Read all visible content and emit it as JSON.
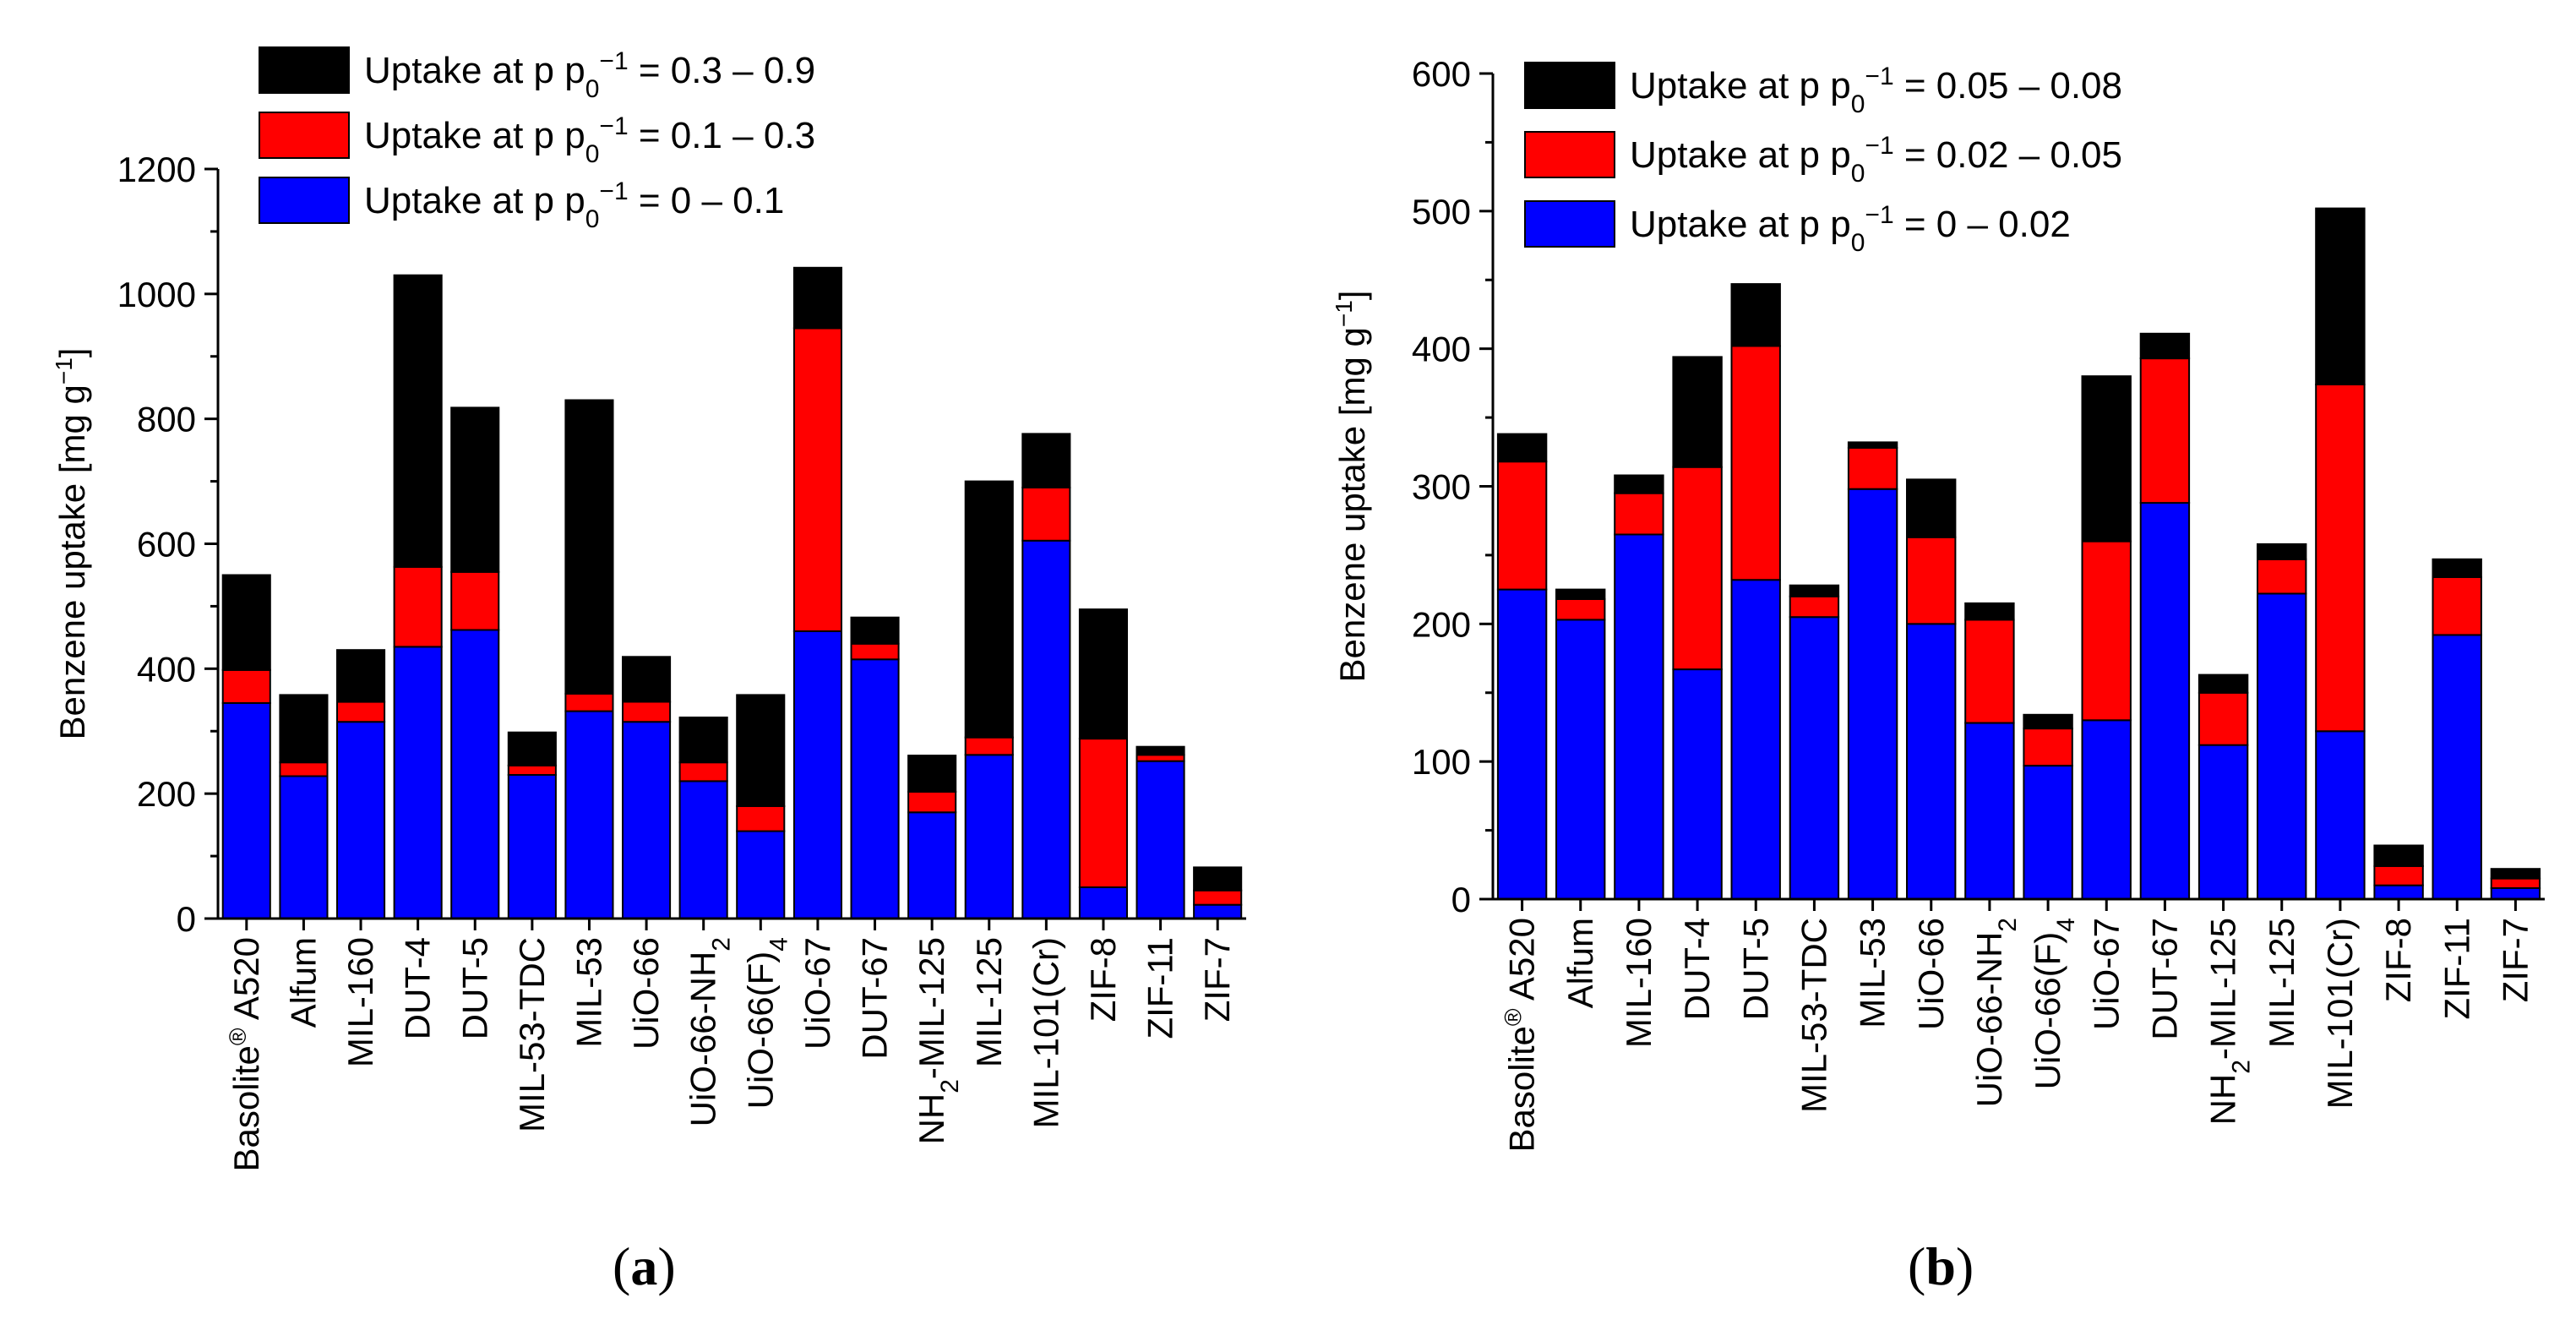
{
  "panel_labels": {
    "a": "a",
    "b": "b"
  },
  "chart_data": [
    {
      "type": "bar",
      "stacked": true,
      "id": "a",
      "ylabel": "Benzene uptake [mg g^-1]",
      "ylabel_parts": {
        "base": "Benzene uptake [mg g",
        "sup": "−1",
        "close": "]"
      },
      "ylim": [
        0,
        1200
      ],
      "yticks": [
        "0",
        "200",
        "400",
        "600",
        "800",
        "1000",
        "1200"
      ],
      "categories": [
        "Basolite® A520",
        "Alfum",
        "MIL-160",
        "DUT-4",
        "DUT-5",
        "MIL-53-TDC",
        "MIL-53",
        "UiO-66",
        "UiO-66-NH2",
        "UiO-66(F)4",
        "UiO-67",
        "DUT-67",
        "NH2-MIL-125",
        "MIL-125",
        "MIL-101(Cr)",
        "ZIF-8",
        "ZIF-11",
        "ZIF-7"
      ],
      "series": [
        {
          "name": "Uptake at p p0^-1 = 0 – 0.1",
          "color": "#0000ff",
          "legend": {
            "prefix": "Uptake at p p",
            "sub": "0",
            "sup": "−1",
            "suffix": " = 0 – 0.1"
          },
          "values": [
            345,
            228,
            315,
            435,
            462,
            230,
            332,
            315,
            220,
            140,
            460,
            415,
            170,
            262,
            605,
            50,
            252,
            22
          ]
        },
        {
          "name": "Uptake at p p0^-1 = 0.1 – 0.3",
          "color": "#ff0000",
          "legend": {
            "prefix": "Uptake at p p",
            "sub": "0",
            "sup": "−1",
            "suffix": " = 0.1 – 0.3"
          },
          "values": [
            53,
            22,
            32,
            128,
            93,
            15,
            28,
            32,
            30,
            40,
            485,
            25,
            33,
            28,
            85,
            238,
            10,
            23
          ]
        },
        {
          "name": "Uptake at p p0^-1 = 0.3 – 0.9",
          "color": "#000000",
          "legend": {
            "prefix": "Uptake at p p",
            "sub": "0",
            "sup": "−1",
            "suffix": " = 0.3 – 0.9"
          },
          "values": [
            152,
            108,
            83,
            467,
            263,
            53,
            470,
            72,
            72,
            178,
            97,
            42,
            58,
            410,
            86,
            207,
            13,
            37
          ]
        }
      ]
    },
    {
      "type": "bar",
      "stacked": true,
      "id": "b",
      "ylabel": "Benzene uptake [mg g^-1]",
      "ylabel_parts": {
        "base": "Benzene uptake [mg g",
        "sup": "−1",
        "close": "]"
      },
      "ylim": [
        0,
        600
      ],
      "yticks": [
        "0",
        "100",
        "200",
        "300",
        "400",
        "500",
        "600"
      ],
      "categories": [
        "Basolite® A520",
        "Alfum",
        "MIL-160",
        "DUT-4",
        "DUT-5",
        "MIL-53-TDC",
        "MIL-53",
        "UiO-66",
        "UiO-66-NH2",
        "UiO-66(F)4",
        "UiO-67",
        "DUT-67",
        "NH2-MIL-125",
        "MIL-125",
        "MIL-101(Cr)",
        "ZIF-8",
        "ZIF-11",
        "ZIF-7"
      ],
      "series": [
        {
          "name": "Uptake at p p0^-1 = 0 – 0.02",
          "color": "#0000ff",
          "legend": {
            "prefix": "Uptake at p p",
            "sub": "0",
            "sup": "−1",
            "suffix": " = 0 – 0.02"
          },
          "values": [
            225,
            203,
            265,
            167,
            232,
            205,
            298,
            200,
            128,
            97,
            130,
            288,
            112,
            222,
            122,
            10,
            192,
            8
          ]
        },
        {
          "name": "Uptake at p p0^-1 = 0.02 – 0.05",
          "color": "#ff0000",
          "legend": {
            "prefix": "Uptake at p p",
            "sub": "0",
            "sup": "−1",
            "suffix": " = 0.02 – 0.05"
          },
          "values": [
            93,
            15,
            30,
            147,
            170,
            15,
            30,
            63,
            75,
            27,
            130,
            105,
            38,
            25,
            252,
            14,
            42,
            7
          ]
        },
        {
          "name": "Uptake at p p0^-1 = 0.05 – 0.08",
          "color": "#000000",
          "legend": {
            "prefix": "Uptake at p p",
            "sub": "0",
            "sup": "−1",
            "suffix": " = 0.05 – 0.08"
          },
          "values": [
            20,
            7,
            13,
            80,
            45,
            8,
            4,
            42,
            12,
            10,
            120,
            18,
            13,
            11,
            128,
            15,
            13,
            7
          ]
        }
      ]
    }
  ]
}
